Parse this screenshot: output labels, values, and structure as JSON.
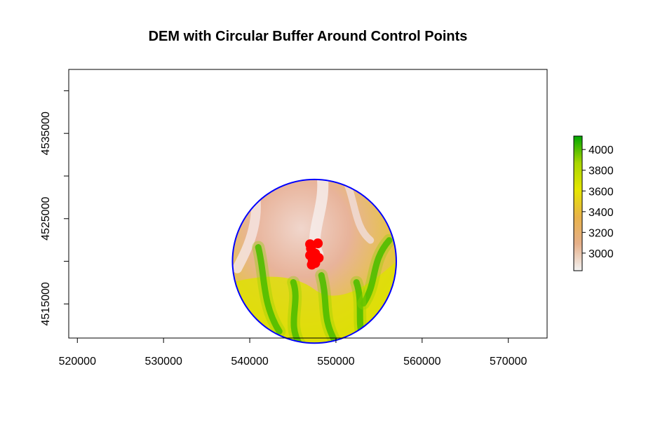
{
  "chart_data": {
    "type": "raster-map",
    "title": "DEM with Circular Buffer Around Control Points",
    "xlabel": "",
    "ylabel": "",
    "xlim": [
      519000,
      574500
    ],
    "ylim": [
      4511000,
      4542500
    ],
    "x_ticks": [
      520000,
      530000,
      540000,
      550000,
      560000,
      570000
    ],
    "y_ticks": [
      4510000,
      4515000,
      4520000,
      4525000,
      4530000,
      4535000,
      4540000
    ],
    "y_tick_labels": [
      {
        "value": 4515000,
        "label": "4515000"
      },
      {
        "value": 4525000,
        "label": "4525000"
      },
      {
        "value": 4535000,
        "label": "4535000"
      }
    ],
    "buffer": {
      "center_x": 547500,
      "center_y": 4520000,
      "radius": 9500,
      "color": "#0000ff"
    },
    "control_points": [
      {
        "x": 547000,
        "y": 4522000
      },
      {
        "x": 547900,
        "y": 4522100
      },
      {
        "x": 547100,
        "y": 4521500
      },
      {
        "x": 547000,
        "y": 4520700
      },
      {
        "x": 547600,
        "y": 4520900
      },
      {
        "x": 548000,
        "y": 4520400
      },
      {
        "x": 547300,
        "y": 4520100
      },
      {
        "x": 547600,
        "y": 4519800
      },
      {
        "x": 547200,
        "y": 4519600
      }
    ],
    "point_color": "#ff0000",
    "legend": {
      "min": 2830,
      "max": 4130,
      "ticks": [
        3000,
        3200,
        3400,
        3600,
        3800,
        4000
      ],
      "tick_labels": [
        "3000",
        "3200",
        "3400",
        "3600",
        "3800",
        "4000"
      ],
      "colors": [
        "#f2f2f2",
        "#e6b08a",
        "#e8b24a",
        "#e6e600",
        "#a9d600",
        "#00a600"
      ],
      "placement": "right"
    }
  }
}
